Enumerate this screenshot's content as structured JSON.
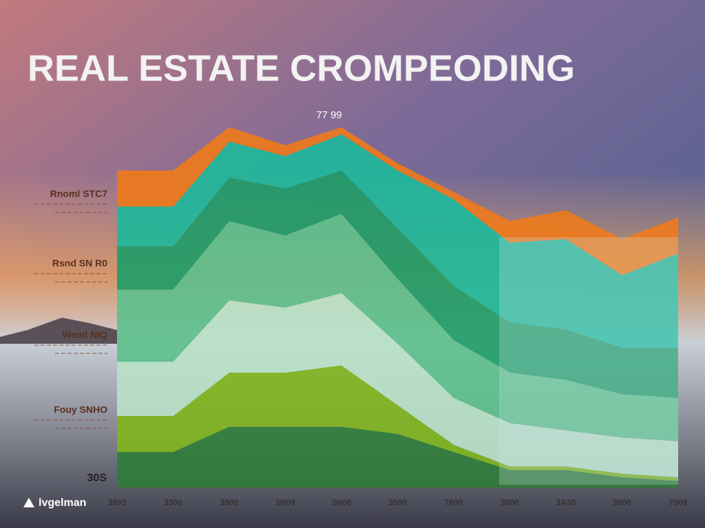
{
  "chart_data": {
    "type": "stacked_area",
    "title": "REAL ESTATE CROMPEODING",
    "annotation": "77 99",
    "base_label": "30S",
    "brand": "lvgelman",
    "labels": [
      "Rnoml STC7",
      "Rsnd SN R0",
      "Weml NIQ",
      "Fouy SNHO"
    ],
    "categories": [
      "3893",
      "3300",
      "3500",
      "3N09",
      "3N00",
      "3500",
      "7600",
      "3800",
      "3A30",
      "3800",
      "7509"
    ],
    "ylim": [
      0,
      100
    ],
    "series": [
      {
        "color": "#2f7d3a",
        "values": [
          10,
          10,
          17,
          17,
          17,
          15,
          10,
          5,
          5,
          3,
          2
        ]
      },
      {
        "color": "#7fb51c",
        "values": [
          10,
          10,
          15,
          15,
          17,
          8,
          2,
          1,
          1,
          1,
          1
        ]
      },
      {
        "color": "#b9e2c9",
        "values": [
          15,
          15,
          20,
          18,
          20,
          17,
          13,
          12,
          10,
          10,
          10
        ]
      },
      {
        "color": "#5cc08c",
        "values": [
          20,
          20,
          22,
          20,
          22,
          18,
          16,
          14,
          14,
          12,
          12
        ]
      },
      {
        "color": "#1e9c68",
        "values": [
          12,
          12,
          12,
          13,
          12,
          14,
          15,
          14,
          14,
          13,
          14
        ]
      },
      {
        "color": "#1db99b",
        "values": [
          11,
          11,
          10,
          9,
          10,
          16,
          24,
          22,
          25,
          20,
          26
        ]
      },
      {
        "color": "#f07a1a",
        "values": [
          10,
          10,
          4,
          3,
          2,
          2,
          2,
          6,
          8,
          10,
          10
        ]
      }
    ]
  }
}
